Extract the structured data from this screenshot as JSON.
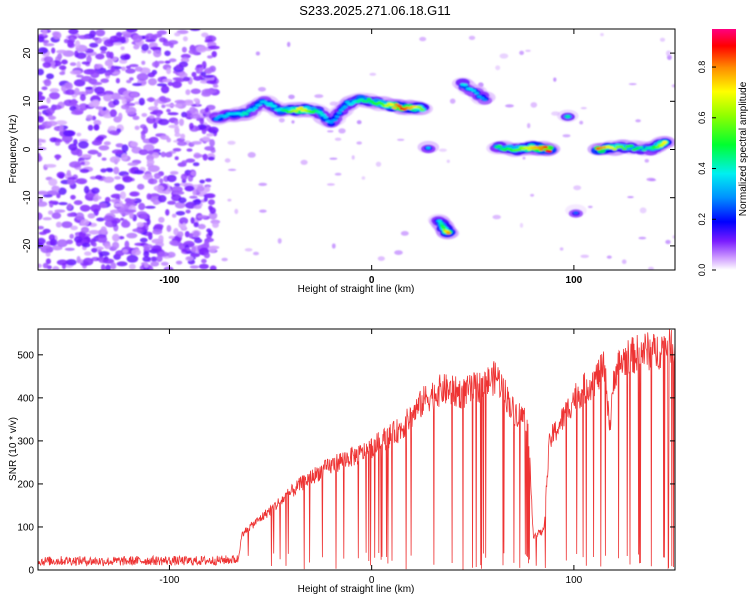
{
  "title": "S233.2025.271.06.18.G11",
  "chart_data": [
    {
      "type": "heatmap",
      "xlabel": "Height of straight line (km)",
      "ylabel": "Frequency (Hz)",
      "xlim": [
        -165,
        150
      ],
      "ylim": [
        -25,
        25
      ],
      "xticks": [
        -100,
        0,
        100
      ],
      "yticks": [
        20,
        10,
        0,
        -10,
        -20
      ],
      "colorbar": {
        "label": "Normalized spectral amplitude",
        "range": [
          0,
          0.95
        ],
        "ticks": [
          0,
          0.2,
          0.4,
          0.6,
          0.8
        ]
      },
      "noise_region": {
        "x": [
          -165,
          -77
        ],
        "y": [
          -25,
          25
        ]
      },
      "ridge": [
        {
          "x": -77,
          "y": 6.5,
          "amp": 0.3
        },
        {
          "x": -70,
          "y": 7.2,
          "amp": 0.35
        },
        {
          "x": -62,
          "y": 7.5,
          "amp": 0.4
        },
        {
          "x": -53,
          "y": 10.0,
          "amp": 0.35
        },
        {
          "x": -45,
          "y": 8.0,
          "amp": 0.4
        },
        {
          "x": -35,
          "y": 8.3,
          "amp": 0.75
        },
        {
          "x": -27,
          "y": 8.0,
          "amp": 0.45
        },
        {
          "x": -20,
          "y": 5.5,
          "amp": 0.3
        },
        {
          "x": -12,
          "y": 9.5,
          "amp": 0.35
        },
        {
          "x": -5,
          "y": 10.5,
          "amp": 0.45
        },
        {
          "x": 5,
          "y": 9.5,
          "amp": 0.55
        },
        {
          "x": 15,
          "y": 8.7,
          "amp": 0.92
        },
        {
          "x": 25,
          "y": 8.6,
          "amp": 0.6
        },
        {
          "x": 28,
          "y": 0.5,
          "amp": 0.35
        },
        {
          "x": 33,
          "y": -14.5,
          "amp": 0.3
        },
        {
          "x": 38,
          "y": -17.5,
          "amp": 0.8
        },
        {
          "x": 45,
          "y": 13.5,
          "amp": 0.4
        },
        {
          "x": 56,
          "y": 10.5,
          "amp": 0.3
        },
        {
          "x": 62,
          "y": 0.5,
          "amp": 0.45
        },
        {
          "x": 72,
          "y": 0.0,
          "amp": 0.55
        },
        {
          "x": 80,
          "y": 0.5,
          "amp": 0.75
        },
        {
          "x": 88,
          "y": 0.0,
          "amp": 0.9
        },
        {
          "x": 97,
          "y": 7.0,
          "amp": 0.45
        },
        {
          "x": 101,
          "y": -13.0,
          "amp": 0.25
        },
        {
          "x": 112,
          "y": 0.0,
          "amp": 0.85
        },
        {
          "x": 125,
          "y": 0.5,
          "amp": 0.55
        },
        {
          "x": 138,
          "y": 0.0,
          "amp": 0.4
        },
        {
          "x": 145,
          "y": 1.5,
          "amp": 0.75
        }
      ]
    },
    {
      "type": "line",
      "xlabel": "Height of straight line (km)",
      "ylabel": "SNR (10 * v/v)",
      "xlim": [
        -165,
        150
      ],
      "ylim": [
        0,
        560
      ],
      "xticks": [
        -100,
        0,
        100
      ],
      "yticks": [
        0,
        100,
        200,
        300,
        400,
        500
      ],
      "series": [
        {
          "name": "SNR",
          "color": "#ee3333",
          "x": [
            -165,
            -150,
            -130,
            -110,
            -90,
            -77,
            -66,
            -64,
            -55,
            -45,
            -35,
            -25,
            -15,
            -5,
            5,
            15,
            20,
            27,
            35,
            45,
            55,
            62,
            65,
            70,
            77,
            80,
            85,
            88,
            95,
            100,
            105,
            110,
            115,
            118,
            120,
            125,
            130,
            135,
            140,
            145,
            150
          ],
          "y": [
            20,
            22,
            20,
            22,
            21,
            22,
            25,
            85,
            120,
            160,
            200,
            230,
            255,
            270,
            300,
            330,
            360,
            400,
            420,
            410,
            430,
            450,
            420,
            370,
            350,
            80,
            90,
            300,
            355,
            400,
            420,
            440,
            470,
            330,
            460,
            490,
            500,
            510,
            505,
            520,
            530
          ]
        }
      ]
    }
  ]
}
